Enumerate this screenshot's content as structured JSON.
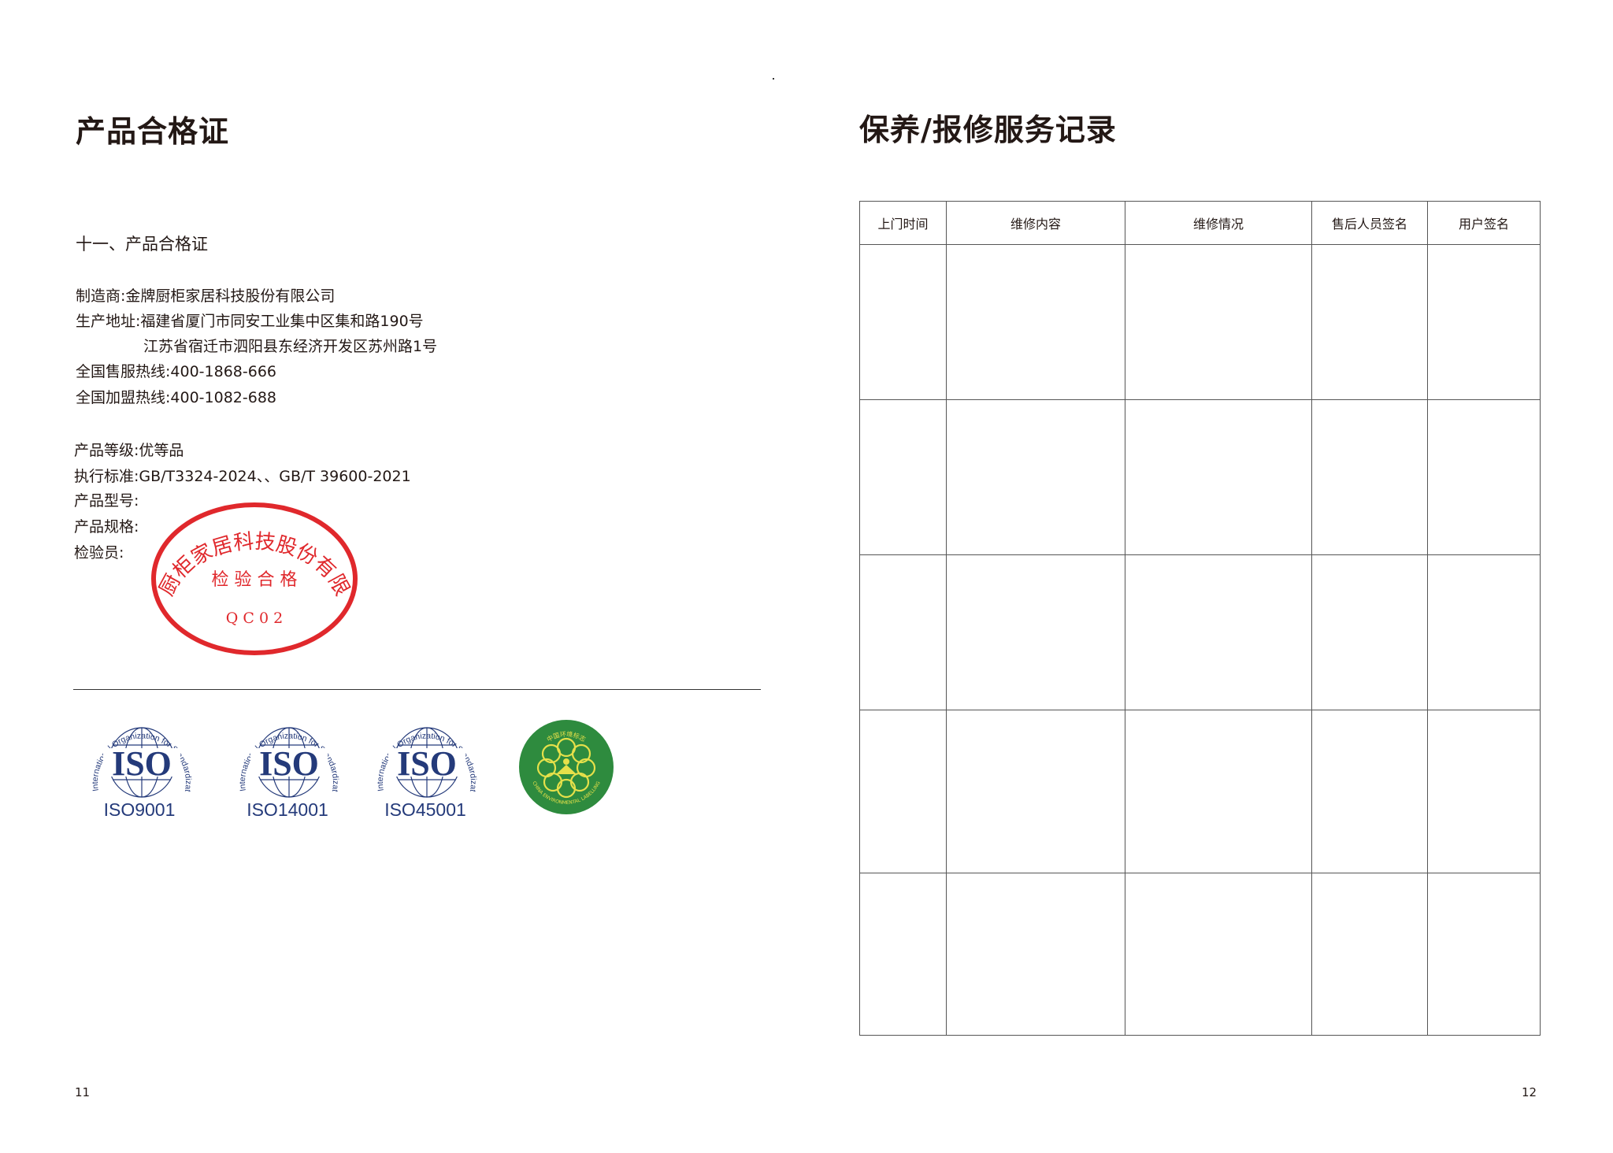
{
  "left_page": {
    "title": "产品合格证",
    "section": "十一、产品合格证",
    "info": [
      "制造商:金牌厨柜家居科技股份有限公司",
      "生产地址:福建省厦门市同安工业集中区集和路190号",
      "江苏省宿迁市泗阳县东经济开发区苏州路1号",
      "全国售服热线:400-1868-666",
      "全国加盟热线:400-1082-688"
    ],
    "product": [
      "产品等级:优等品",
      "执行标准:GB/T3324-2024、、GB/T 39600-2021",
      "产品型号:",
      "产品规格:",
      "检验员:"
    ],
    "stamp": {
      "ring": "金牌厨柜家居科技股份有限公司",
      "center": "检 验 合 格",
      "code": "Q C 0 2",
      "color": "#e0282c"
    },
    "certs": [
      {
        "arc": "International Organization for Standardization",
        "mark": "ISO",
        "label": "ISO9001"
      },
      {
        "arc": "International Organization for Standardization",
        "mark": "ISO",
        "label": "ISO14001"
      },
      {
        "arc": "International Organization for Standardization",
        "mark": "ISO",
        "label": "ISO45001"
      }
    ],
    "eco_label": {
      "top": "中国环境标志",
      "bottom": "CHINA ENVIRONMENTAL LABELLING",
      "color": "#2e8b3e"
    },
    "page_number": "11"
  },
  "right_page": {
    "title": "保养/报修服务记录",
    "table": {
      "headers": [
        "上门时间",
        "维修内容",
        "维修情况",
        "售后人员签名",
        "用户签名"
      ],
      "rows": 5
    },
    "page_number": "12"
  },
  "colors": {
    "iso_blue": "#243a7a"
  }
}
